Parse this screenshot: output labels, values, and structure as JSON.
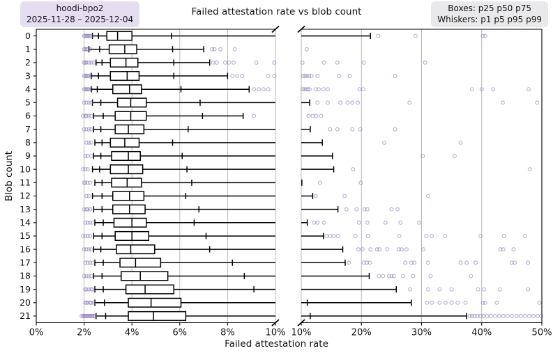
{
  "title": "Failed attestation rate vs blob count",
  "badge_left": {
    "line1": "hoodi-bpo2",
    "line2": "2025-11-28 – 2025-12-04"
  },
  "badge_right": {
    "line1": "Boxes: p25 p50 p75",
    "line2": "Whiskers: p1 p5 p95 p99"
  },
  "xlabel": "Failed attestation rate",
  "ylabel": "Blob count",
  "colors": {
    "box_stroke": "#000000",
    "outlier": "#7b68ab",
    "grid": "#b0b0b0",
    "spine": "#000000",
    "badge_left_bg": "#e5def1",
    "badge_right_bg": "#e9e8ea"
  },
  "chart_data": {
    "type": "boxplot",
    "orientation": "horizontal",
    "broken_x_axis": true,
    "percentile_keys": [
      "p1",
      "p5",
      "p25",
      "p50",
      "p75",
      "p95",
      "p99"
    ],
    "panels": [
      {
        "range": [
          0,
          10
        ],
        "ticks": [
          0,
          2,
          4,
          6,
          8,
          10
        ],
        "tick_labels": [
          "0%",
          "2%",
          "4%",
          "6%",
          "8%",
          "10%"
        ],
        "gridlines": [
          2,
          4,
          6,
          8,
          10
        ]
      },
      {
        "range": [
          10,
          50
        ],
        "ticks": [
          10,
          20,
          30,
          40,
          50
        ],
        "tick_labels": [
          "10%",
          "20%",
          "30%",
          "40%",
          "50%"
        ],
        "gridlines": [
          10,
          20,
          30,
          40
        ]
      }
    ],
    "y_categories": [
      "0",
      "1",
      "2",
      "3",
      "4",
      "5",
      "6",
      "7",
      "8",
      "9",
      "10",
      "11",
      "12",
      "13",
      "14",
      "15",
      "16",
      "17",
      "18",
      "19",
      "20",
      "21"
    ],
    "rows": [
      {
        "blob": "0",
        "p": [
          2.35,
          2.6,
          2.95,
          3.4,
          4.0,
          5.65,
          21.5
        ],
        "lo": [
          2.0,
          2.05,
          2.1,
          2.15,
          2.2,
          2.25,
          2.3
        ],
        "hi": [
          22.8,
          29.0,
          40.2,
          40.6
        ]
      },
      {
        "blob": "1",
        "p": [
          2.2,
          2.65,
          3.05,
          3.7,
          4.2,
          5.7,
          7.0
        ],
        "lo": [
          2.0,
          2.05,
          2.1,
          2.15,
          2.25
        ],
        "hi": [
          7.35,
          7.45,
          7.7,
          8.3,
          10.9
        ]
      },
      {
        "blob": "2",
        "p": [
          2.5,
          2.75,
          3.1,
          3.75,
          4.25,
          5.75,
          7.25
        ],
        "lo": [
          2.0,
          2.05,
          2.1,
          2.2,
          2.3,
          2.4
        ],
        "hi": [
          7.4,
          7.55,
          7.9,
          8.05,
          8.25,
          9.2,
          9.95,
          10.2,
          13.8,
          16.0,
          20.4,
          30.6
        ]
      },
      {
        "blob": "3",
        "p": [
          2.3,
          2.6,
          3.1,
          3.8,
          4.3,
          5.75,
          8.0
        ],
        "lo": [
          2.0,
          2.05,
          2.1,
          2.15,
          2.2,
          2.3
        ],
        "hi": [
          8.2,
          8.4,
          8.6,
          9.7,
          9.95,
          10.3,
          10.6,
          10.9,
          11.3,
          11.7,
          12.7,
          16.3,
          18.1,
          25.6
        ]
      },
      {
        "blob": "4",
        "p": [
          2.3,
          2.55,
          3.2,
          3.9,
          4.4,
          6.05,
          8.9
        ],
        "lo": [
          2.0,
          2.05,
          2.1,
          2.15,
          2.2,
          2.3
        ],
        "hi": [
          9.1,
          9.3,
          9.5,
          9.7,
          10.2,
          10.5,
          10.8,
          11.1,
          11.4,
          12.4,
          12.9,
          13.7,
          14.4,
          19.7,
          20.3,
          38.4,
          40.0,
          41.9,
          47.8
        ]
      },
      {
        "blob": "5",
        "p": [
          2.35,
          2.7,
          3.4,
          3.95,
          4.6,
          6.85,
          11.4
        ],
        "lo": [
          2.0,
          2.1,
          2.2,
          2.3
        ],
        "hi": [
          12.7,
          14.4,
          16.5,
          17.7,
          18.5,
          19.4,
          28.0,
          43.5,
          49.2
        ]
      },
      {
        "blob": "6",
        "p": [
          2.4,
          2.8,
          3.3,
          3.95,
          4.6,
          6.95,
          8.65
        ],
        "lo": [
          1.95,
          2.05,
          2.1,
          2.2,
          2.3
        ],
        "hi": [
          9.1,
          11.2,
          11.9,
          12.5,
          13.3
        ]
      },
      {
        "blob": "7",
        "p": [
          2.4,
          2.7,
          3.3,
          3.85,
          4.5,
          6.35,
          11.5
        ],
        "lo": [
          2.0,
          2.1,
          2.2,
          2.3
        ],
        "hi": [
          14.8,
          16.0,
          18.5,
          19.8,
          25.6
        ]
      },
      {
        "blob": "8",
        "p": [
          2.45,
          2.75,
          3.1,
          3.7,
          4.3,
          5.7,
          13.5
        ],
        "lo": [
          2.1,
          2.2,
          2.3
        ],
        "hi": [
          23.8,
          36.5
        ]
      },
      {
        "blob": "9",
        "p": [
          2.4,
          2.7,
          3.15,
          3.85,
          4.35,
          6.1,
          15.2
        ],
        "lo": [
          2.05,
          2.15,
          2.3
        ],
        "hi": [
          30.2,
          35.5
        ]
      },
      {
        "blob": "10",
        "p": [
          2.35,
          2.65,
          3.1,
          3.85,
          4.45,
          6.3,
          15.4
        ],
        "lo": [
          1.95,
          2.05,
          2.15
        ],
        "hi": [
          18.6,
          48.0
        ]
      },
      {
        "blob": "11",
        "p": [
          2.45,
          2.75,
          3.15,
          3.8,
          4.4,
          6.5,
          10.1
        ],
        "lo": [
          2.0,
          2.05,
          2.15,
          2.25
        ],
        "hi": [
          13.1,
          19.9
        ]
      },
      {
        "blob": "12",
        "p": [
          2.35,
          2.75,
          3.2,
          3.9,
          4.5,
          6.25,
          11.9
        ],
        "lo": [
          2.1,
          2.2
        ],
        "hi": [
          12.4,
          17.2,
          31.1
        ]
      },
      {
        "blob": "13",
        "p": [
          2.4,
          2.75,
          3.2,
          3.9,
          4.55,
          6.8,
          16.1
        ],
        "lo": [
          2.0,
          2.1,
          2.15,
          2.25
        ],
        "hi": [
          17.5,
          19.2,
          20.5,
          21.0,
          25.0,
          26.0
        ]
      },
      {
        "blob": "14",
        "p": [
          2.45,
          2.8,
          3.25,
          4.0,
          4.6,
          6.6,
          11.0
        ],
        "lo": [
          2.05,
          2.15,
          2.25,
          2.35
        ],
        "hi": [
          12.1,
          12.7,
          13.8,
          19.6,
          21.0,
          24.0,
          26.5,
          29.6
        ]
      },
      {
        "blob": "15",
        "p": [
          2.4,
          2.75,
          3.3,
          4.0,
          4.7,
          7.1,
          13.7
        ],
        "lo": [
          1.95,
          2.05,
          2.15,
          2.25
        ],
        "hi": [
          14.2,
          14.8,
          15.4,
          16.1,
          19.0,
          21.1,
          26.3,
          30.8,
          31.7,
          33.9,
          39.8,
          43.7,
          47.2
        ]
      },
      {
        "blob": "16",
        "p": [
          2.4,
          2.7,
          3.35,
          3.95,
          4.95,
          7.25,
          16.9
        ],
        "lo": [
          2.0,
          2.1,
          2.2,
          2.3
        ],
        "hi": [
          19.5,
          20.2,
          21.5,
          22.6,
          23.0,
          24.3,
          26.2,
          26.7,
          27.5,
          30.3,
          43.1,
          43.6,
          45.3
        ]
      },
      {
        "blob": "17",
        "p": [
          2.45,
          2.8,
          3.5,
          4.15,
          5.2,
          8.2,
          17.3
        ],
        "lo": [
          2.05,
          2.15,
          2.25,
          2.35
        ],
        "hi": [
          17.9,
          20.4,
          20.9,
          21.4,
          27.3,
          28.3,
          28.8,
          31.1,
          36.5,
          37.5,
          39.0,
          45.0,
          45.5,
          47.7
        ]
      },
      {
        "blob": "18",
        "p": [
          2.4,
          2.75,
          3.55,
          4.35,
          5.5,
          8.7,
          21.3
        ],
        "lo": [
          2.0,
          2.1,
          2.2,
          2.3
        ],
        "hi": [
          22.9,
          23.6,
          24.6,
          25.0,
          25.4,
          26.9,
          28.6,
          31.5,
          38.2
        ]
      },
      {
        "blob": "19",
        "p": [
          2.45,
          2.8,
          3.75,
          4.55,
          5.75,
          9.1,
          25.8
        ],
        "lo": [
          2.05,
          2.1,
          2.2,
          2.3,
          2.35
        ],
        "hi": [
          28.1,
          31.1,
          33.0,
          35.0,
          39.4,
          40.4,
          43.0,
          47.7
        ]
      },
      {
        "blob": "20",
        "p": [
          2.45,
          2.85,
          3.85,
          4.8,
          6.05,
          11.0,
          28.3
        ],
        "lo": [
          2.05,
          2.1,
          2.15,
          2.25,
          2.3,
          2.4
        ],
        "hi": [
          30.9,
          31.7,
          33.0,
          34.0,
          35.0,
          36.0,
          37.3,
          40.2,
          40.6,
          42.5,
          49.6
        ]
      },
      {
        "blob": "21",
        "p": [
          2.5,
          2.9,
          3.85,
          4.9,
          6.25,
          11.5,
          37.5
        ],
        "lo": [
          1.9,
          1.95,
          2.0,
          2.05,
          2.1,
          2.15,
          2.2,
          2.25,
          2.3,
          2.35,
          2.4,
          2.45
        ],
        "hi": [
          38.0,
          38.4,
          38.8,
          39.3,
          39.8,
          40.3,
          40.9,
          41.5,
          42.2,
          42.9,
          43.6,
          44.3,
          45.0,
          45.8,
          46.5,
          47.2,
          47.9,
          48.6,
          49.3,
          49.9
        ]
      }
    ]
  }
}
